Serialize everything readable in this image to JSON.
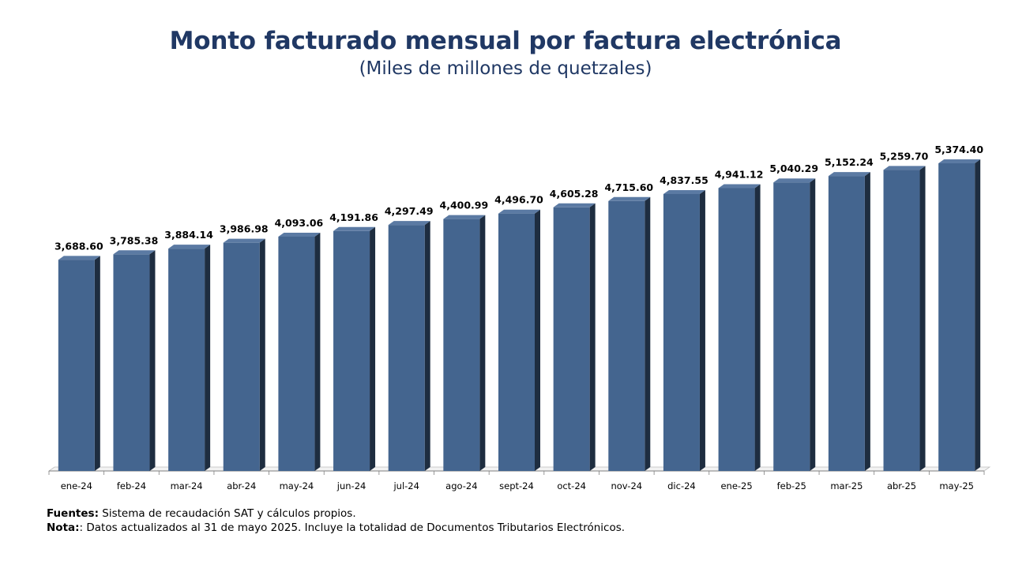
{
  "title": "Monto facturado mensual por factura electrónica",
  "subtitle": "(Miles de millones de quetzales)",
  "colors": {
    "bar_front": "#44658f",
    "bar_side": "#1e2d40",
    "bar_top": "#5b7aa3",
    "title": "#203864",
    "axis": "#7f7f7f"
  },
  "chart_data": {
    "type": "bar",
    "categories": [
      "ene-24",
      "feb-24",
      "mar-24",
      "abr-24",
      "may-24",
      "jun-24",
      "jul-24",
      "ago-24",
      "sept-24",
      "oct-24",
      "nov-24",
      "dic-24",
      "ene-25",
      "feb-25",
      "mar-25",
      "abr-25",
      "may-25"
    ],
    "values": [
      3688.6,
      3785.38,
      3884.14,
      3986.98,
      4093.06,
      4191.86,
      4297.49,
      4400.99,
      4496.7,
      4605.28,
      4715.6,
      4837.55,
      4941.12,
      5040.29,
      5152.24,
      5259.7,
      5374.4
    ],
    "value_labels": [
      "3,688.60",
      "3,785.38",
      "3,884.14",
      "3,986.98",
      "4,093.06",
      "4,191.86",
      "4,297.49",
      "4,400.99",
      "4,496.70",
      "4,605.28",
      "4,715.60",
      "4,837.55",
      "4,941.12",
      "5,040.29",
      "5,152.24",
      "5,259.70",
      "5,374.40"
    ],
    "title": "Monto facturado mensual por factura electrónica",
    "subtitle": "(Miles de millones de quetzales)",
    "xlabel": "",
    "ylabel": "",
    "ylim": [
      0,
      5374.4
    ],
    "grid": false,
    "legend": "none",
    "style": "3d-column"
  },
  "notes": {
    "sources_label": "Fuentes",
    "sources_text": " Sistema de recaudación SAT y cálculos propios.",
    "note_label": "Nota",
    "note_text": ": Datos actualizados al 31 de mayo 2025.  Incluye la totalidad de Documentos Tributarios Electrónicos."
  }
}
